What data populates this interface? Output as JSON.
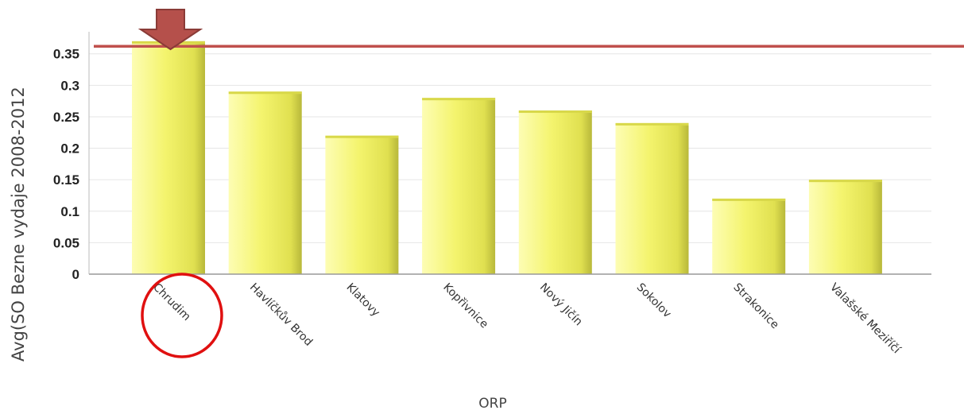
{
  "chart_data": {
    "type": "bar",
    "title": "",
    "xlabel": "ORP",
    "ylabel": "Avg(SO Bezne vydaje 2008-2012",
    "categories": [
      "Chrudim",
      "Havlíčkův Brod",
      "Klatovy",
      "Kopřivnice",
      "Nový Jičín",
      "Sokolov",
      "Strakonice",
      "Valašské Meziříčí"
    ],
    "values": [
      0.37,
      0.29,
      0.22,
      0.28,
      0.26,
      0.24,
      0.12,
      0.15
    ],
    "yticks": [
      "0",
      "0.05",
      "0.1",
      "0.15",
      "0.2",
      "0.25",
      "0.3",
      "0.35"
    ],
    "ylim": [
      0,
      0.385
    ],
    "grid": true,
    "legend": "none",
    "reference_line_value": 0.362,
    "highlighted_category": "Chrudim",
    "colors": {
      "bar_light": "#fbfb9a",
      "bar_mid": "#f3f36a",
      "bar_dark": "#b8b83a",
      "reference_line": "#c0504d",
      "arrow_fill": "#b5504b",
      "arrow_stroke": "#8a3b37",
      "circle": "#e01010",
      "grid": "#e6e6e6",
      "axis": "#999999"
    }
  }
}
